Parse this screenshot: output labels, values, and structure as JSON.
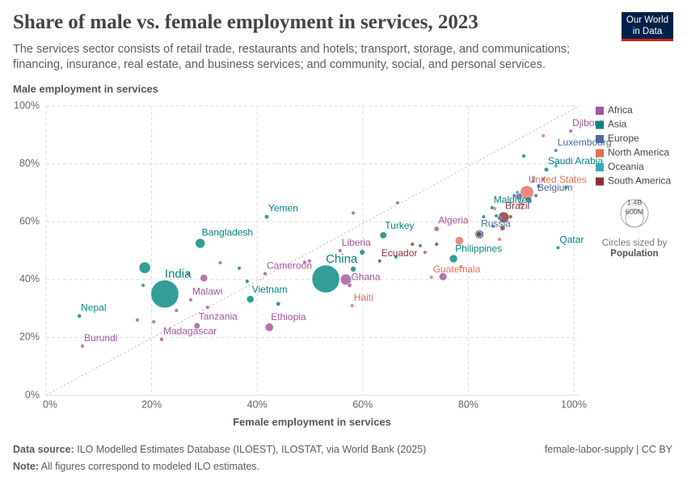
{
  "chart_data": {
    "type": "scatter",
    "title": "Share of male vs. female employment in services, 2023",
    "subtitle": "The services sector consists of retail trade, restaurants and hotels; transport, storage, and communications; financing, insurance, real estate, and business services; and community, social, and personal services.",
    "x_label": "Female employment in services",
    "y_label": "Male employment in services",
    "logo": "Our World in Data",
    "size_legend_title": "Circles sized by",
    "size_legend_variable": "Population",
    "size_legend_ticks": [
      {
        "value": 1400000000,
        "label": "1.4B"
      },
      {
        "value": 600000000,
        "label": "600M"
      }
    ],
    "source_label": "Data source:",
    "source": "ILO Modelled Estimates Database (ILOEST), ILOSTAT, via World Bank (2025)",
    "note_label": "Note:",
    "note": "All figures correspond to modeled ILO estimates.",
    "credit": "female-labor-supply | CC BY",
    "xlim": [
      0,
      100
    ],
    "ylim": [
      0,
      100
    ],
    "xticks": [
      {
        "value": 0,
        "label": "0%"
      },
      {
        "value": 20,
        "label": "20%"
      },
      {
        "value": 40,
        "label": "40%"
      },
      {
        "value": 60,
        "label": "60%"
      },
      {
        "value": 80,
        "label": "80%"
      },
      {
        "value": 100,
        "label": "100%"
      }
    ],
    "yticks": [
      {
        "value": 0,
        "label": "0%"
      },
      {
        "value": 20,
        "label": "20%"
      },
      {
        "value": 40,
        "label": "40%"
      },
      {
        "value": 60,
        "label": "60%"
      },
      {
        "value": 80,
        "label": "80%"
      },
      {
        "value": 100,
        "label": "100%"
      }
    ],
    "grid": true,
    "series": [
      {
        "name": "Africa",
        "color": "#a2559c",
        "labels": [
          "Djibouti",
          "Algeria",
          "Liberia",
          "Cameroon",
          "Malawi",
          "Tanzania",
          "Madagascar",
          "Burundi",
          "Ethiopia",
          "Ghana",
          null,
          null,
          null,
          null,
          null,
          null,
          null,
          null,
          null,
          null,
          null,
          null,
          null,
          null
        ],
        "x": [
          99.4,
          74,
          55.7,
          41.5,
          27.4,
          28.6,
          21.9,
          6.9,
          42.3,
          57.5,
          56.8,
          75.2,
          29.9,
          17.3,
          20.4,
          24.7,
          30.6,
          33,
          49,
          58.2,
          66.6,
          71.8,
          26.9,
          49.9
        ],
        "y": [
          91.3,
          57.5,
          50,
          42,
          33,
          24,
          19.3,
          17,
          23.5,
          38,
          40,
          41,
          40.5,
          26,
          25.4,
          29.3,
          30.4,
          45.8,
          46,
          63,
          66.5,
          49.4,
          41.9,
          46.4
        ],
        "size": [
          1100000,
          45000000,
          5400000,
          28000000,
          20000000,
          67000000,
          30000000,
          13000000,
          126000000,
          34000000,
          220000000,
          110000000,
          100000000,
          8000000,
          6000000,
          14000000,
          12000000,
          9000000,
          17000000,
          5000000,
          3000000,
          12000000,
          9000000,
          27000000
        ]
      },
      {
        "name": "Asia",
        "color": "#00847e",
        "labels": [
          "Yemen",
          "Bangladesh",
          "India",
          "Nepal",
          "Vietnam",
          "China",
          "Turkey",
          "Maldives",
          "Philippines",
          "Qatar",
          "Saudi Arabia",
          null,
          null,
          null,
          null,
          null,
          null,
          null,
          null,
          null,
          null,
          null,
          null,
          null
        ],
        "x": [
          41.8,
          29.2,
          22.5,
          6.3,
          38.7,
          53,
          63.9,
          84.5,
          77.2,
          97,
          94.8,
          18.7,
          59.9,
          18.4,
          38.1,
          36.6,
          44,
          58.2,
          66.3,
          70.9,
          82.9,
          85.3,
          90.5,
          98.5
        ],
        "y": [
          61.7,
          52.5,
          35,
          27.4,
          33.2,
          40.2,
          55.3,
          64.8,
          47.2,
          51,
          78,
          44.1,
          49.4,
          38,
          39.4,
          43.9,
          31.6,
          43.6,
          47.8,
          51.7,
          61.7,
          62,
          82.7,
          71.8
        ],
        "size": [
          34000000,
          171000000,
          1430000000,
          30000000,
          98000000,
          1410000000,
          85000000,
          500000,
          117000000,
          2700000,
          36000000,
          240000000,
          50000000,
          9000000,
          7000000,
          6000000,
          35000000,
          55000000,
          10000000,
          5000000,
          6000000,
          10000000,
          4000000,
          5000000
        ]
      },
      {
        "name": "Europe",
        "color": "#4c6a9c",
        "labels": [
          "Luxembourg",
          "Russia",
          "Belgium",
          null,
          null,
          null,
          null,
          null,
          null,
          null,
          null
        ],
        "x": [
          96.6,
          82.1,
          92.8,
          89.6,
          88.7,
          92.3,
          94.2,
          93.3,
          84.7,
          85.9,
          91.4
        ],
        "y": [
          84.6,
          55.6,
          69,
          68.7,
          69,
          74,
          74.6,
          72.3,
          58.4,
          61.2,
          67.6
        ],
        "size": [
          650000,
          144000000,
          11700000,
          84000000,
          10000000,
          5000000,
          6000000,
          17000000,
          9000000,
          10000000,
          68000000
        ]
      },
      {
        "name": "North America",
        "color": "#e56e5a",
        "labels": [
          "United States",
          "Haiti",
          "Guatemala",
          null,
          null,
          null,
          null,
          null,
          null
        ],
        "x": [
          91.1,
          58,
          73,
          78.3,
          94.2,
          78.6,
          85,
          90,
          85.9
        ],
        "y": [
          70.1,
          31,
          40.8,
          53.4,
          89.7,
          44.4,
          64.5,
          66.2,
          53.9
        ],
        "size": [
          335000000,
          11700000,
          18000000,
          128000000,
          400000,
          5000000,
          4000000,
          39000000,
          6000000
        ]
      },
      {
        "name": "Oceania",
        "color": "#38aaba",
        "labels": [
          null,
          null,
          null
        ],
        "x": [
          96.6,
          92.3,
          89.3
        ],
        "y": [
          79.3,
          75.1,
          70.1
        ],
        "size": [
          5000000,
          26000000,
          1000000
        ]
      },
      {
        "name": "South America",
        "color": "#883039",
        "labels": [
          "Brazil",
          "Ecuador",
          null,
          null,
          null,
          null,
          null
        ],
        "x": [
          86.7,
          63.2,
          82,
          74,
          86.5,
          69.4,
          88
        ],
        "y": [
          61.5,
          46.4,
          55.6,
          52.2,
          57.8,
          52.2,
          61.7
        ],
        "size": [
          216000000,
          18000000,
          52000000,
          7000000,
          46000000,
          3400000,
          20000000
        ]
      }
    ]
  }
}
